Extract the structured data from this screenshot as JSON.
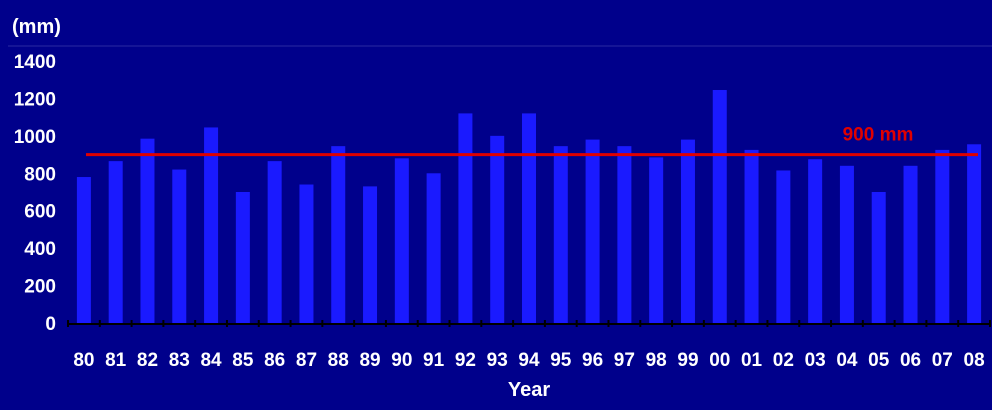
{
  "chart_data": {
    "type": "bar",
    "unit_label": "(mm)",
    "xlabel": "Year",
    "ylabel": "",
    "ylim": [
      0,
      1400
    ],
    "yticks": [
      0,
      200,
      400,
      600,
      800,
      1000,
      1200,
      1400
    ],
    "grid": false,
    "legend": "none",
    "categories": [
      "80",
      "81",
      "82",
      "83",
      "84",
      "85",
      "86",
      "87",
      "88",
      "89",
      "90",
      "91",
      "92",
      "93",
      "94",
      "95",
      "96",
      "97",
      "98",
      "99",
      "00",
      "01",
      "02",
      "03",
      "04",
      "05",
      "06",
      "07",
      "08"
    ],
    "values": [
      780,
      865,
      985,
      820,
      1045,
      700,
      865,
      740,
      945,
      730,
      880,
      800,
      1120,
      1000,
      1120,
      945,
      980,
      945,
      885,
      980,
      1245,
      925,
      815,
      875,
      840,
      700,
      840,
      925,
      955
    ],
    "reference_line": {
      "value": 900,
      "label": "900 mm"
    },
    "colors": {
      "background": "#00008b",
      "bar": "#1a1aff",
      "reference_line": "#e00000",
      "reference_label": "#e00000",
      "text": "#ffffff",
      "axis": "#000000"
    }
  }
}
